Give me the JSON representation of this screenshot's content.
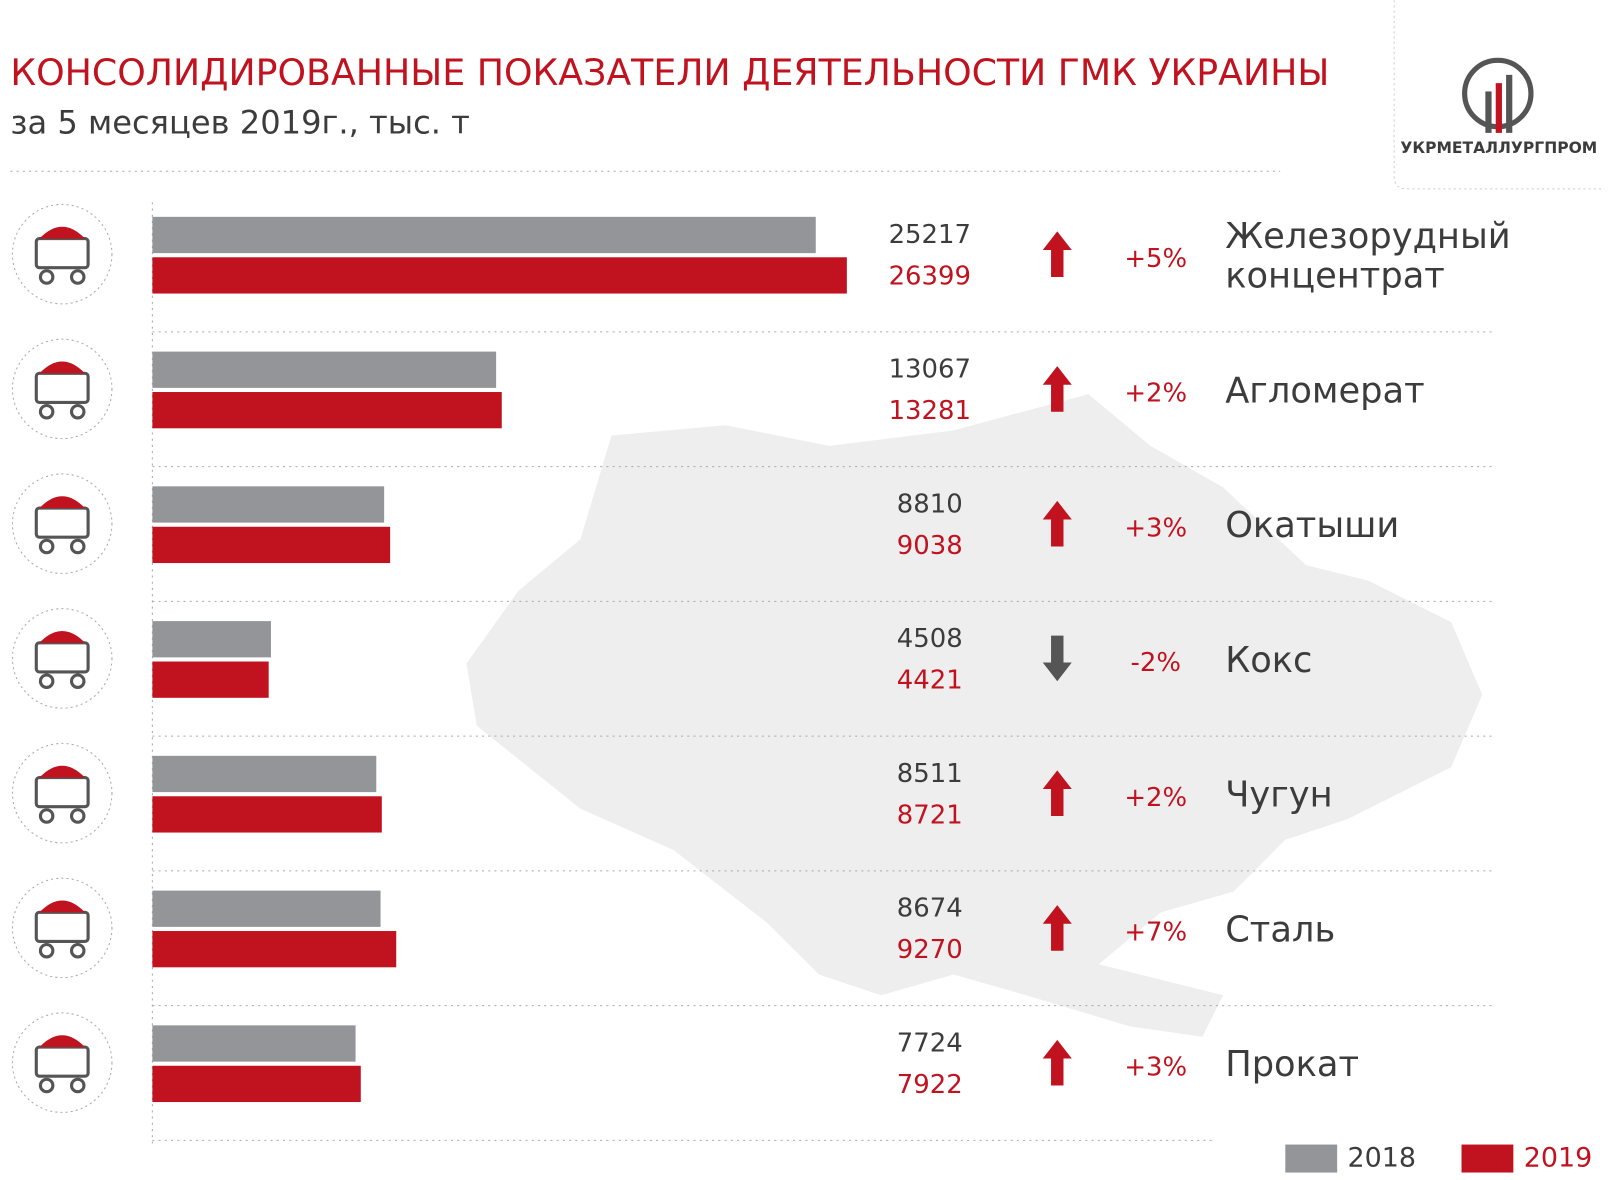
{
  "chart_data": {
    "type": "bar",
    "orientation": "horizontal",
    "title": "КОНСОЛИДИРОВАННЫЕ ПОКАЗАТЕЛИ ДЕЯТЕЛЬНОСТИ ГМК УКРАИНЫ",
    "subtitle": "за 5 месяцев 2019г., тыс. т",
    "categories": [
      "Железорудный концентрат",
      "Агломерат",
      "Окатыши",
      "Кокс",
      "Чугун",
      "Сталь",
      "Прокат"
    ],
    "series": [
      {
        "name": "2018",
        "color": "#939598",
        "values": [
          25217,
          13067,
          8810,
          4508,
          8511,
          8674,
          7724
        ]
      },
      {
        "name": "2019",
        "color": "#c1121f",
        "values": [
          26399,
          13281,
          9038,
          4421,
          8721,
          9270,
          7922
        ]
      }
    ],
    "changes": [
      {
        "value": 5,
        "label": "+5%"
      },
      {
        "value": 2,
        "label": "+2%"
      },
      {
        "value": 3,
        "label": "+3%"
      },
      {
        "value": -2,
        "label": "-2%"
      },
      {
        "value": 2,
        "label": "+2%"
      },
      {
        "value": 7,
        "label": "+7%"
      },
      {
        "value": 3,
        "label": "+3%"
      }
    ],
    "up_color": "#c1121f",
    "down_color": "#555555"
  },
  "logo": {
    "text": "УКРМЕТАЛЛУРГПРОМ"
  }
}
